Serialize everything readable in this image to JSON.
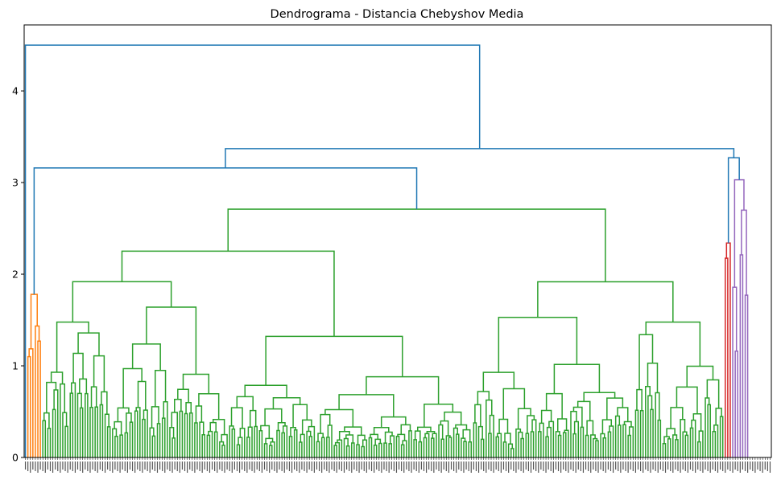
{
  "chart_data": {
    "type": "dendrogram",
    "title": "Dendrograma - Distancia Chebyshov Media",
    "xlabel": "",
    "ylabel": "",
    "ylim": [
      0,
      4.72
    ],
    "yticks": [
      0,
      1,
      2,
      3,
      4
    ],
    "grid": false,
    "legend": "none",
    "leaf_count": 300,
    "root_height": 4.5,
    "color_threshold_note": "clusters colored below root",
    "colors": {
      "above_threshold": "#1f77b4",
      "orange": "#ff7f0e",
      "green": "#2ca02c",
      "red": "#d62728",
      "purple": "#9467bd"
    },
    "clusters": [
      {
        "color": "orange",
        "leaves": 6,
        "height": 1.78
      },
      {
        "color": "green",
        "leaves": 274,
        "height": 2.71
      },
      {
        "color": "red",
        "leaves": 3,
        "height": 2.34
      },
      {
        "color": "purple",
        "leaves": 7,
        "height": 3.03
      }
    ],
    "upper_links": [
      {
        "children": [
          "orange",
          "green"
        ],
        "height": 3.16
      },
      {
        "children": [
          "red",
          "purple"
        ],
        "height": 3.27
      },
      {
        "children": [
          "orange+green",
          "red+purple"
        ],
        "height": 3.37
      },
      {
        "children": [
          "singleton",
          "rest"
        ],
        "height": 4.5
      }
    ],
    "major_internal_heights": [
      2.71,
      2.59,
      2.58,
      2.28,
      2.27,
      2.22,
      2.13,
      2.41,
      1.97,
      1.93,
      1.88,
      1.82,
      1.78,
      1.72,
      1.67,
      1.6,
      1.58,
      1.5,
      1.48,
      1.45,
      1.43,
      1.38,
      1.35,
      1.31,
      1.28,
      1.24,
      1.2,
      1.15,
      1.12,
      1.0,
      0.98,
      0.93,
      0.85,
      0.7,
      0.55,
      0.45
    ]
  }
}
